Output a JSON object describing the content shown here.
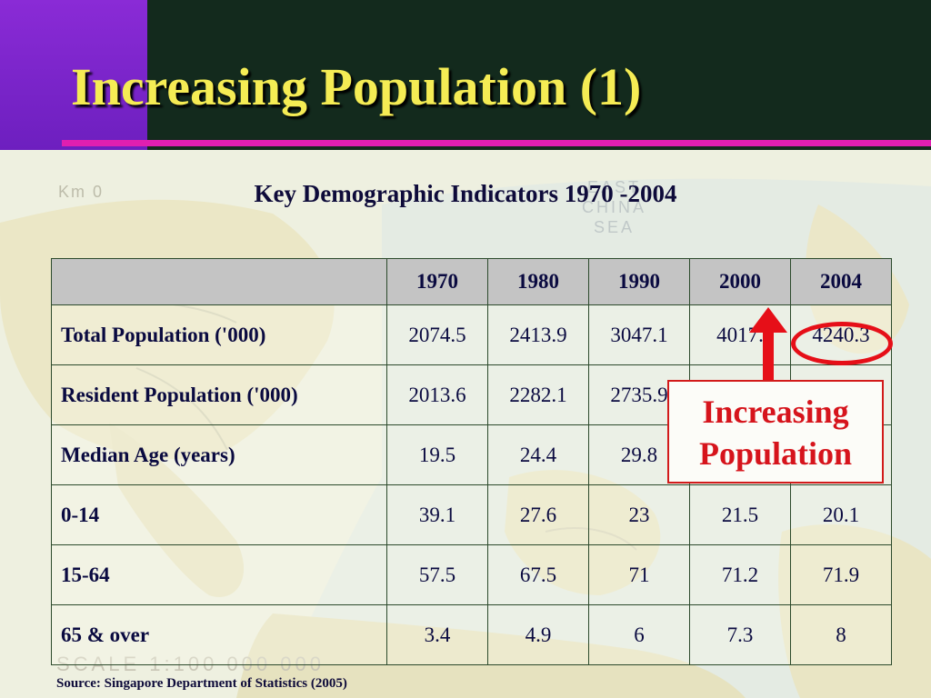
{
  "header": {
    "title": "Increasing Population (1)",
    "accent_color": "#e01fb0",
    "title_color": "#f5ec54"
  },
  "map": {
    "scale_label": "Km 0",
    "sea_label_line1": "EAST",
    "sea_label_line2": "CHINA",
    "sea_label_line3": "SEA",
    "scale_text": "SCALE 1:100 000 000"
  },
  "subtitle": "Key Demographic Indicators 1970 -2004",
  "table": {
    "columns": [
      "1970",
      "1980",
      "1990",
      "2000",
      "2004"
    ],
    "rows": [
      {
        "label": "Total Population ('000)",
        "values": [
          "2074.5",
          "2413.9",
          "3047.1",
          "4017.",
          "4240.3"
        ]
      },
      {
        "label": "Resident Population ('000)",
        "values": [
          "2013.6",
          "2282.1",
          "2735.9",
          "",
          ""
        ]
      },
      {
        "label": "Median Age (years)",
        "values": [
          "19.5",
          "24.4",
          "29.8",
          "",
          ""
        ]
      },
      {
        "label": "0-14",
        "values": [
          "39.1",
          "27.6",
          "23",
          "21.5",
          "20.1"
        ]
      },
      {
        "label": "15-64",
        "values": [
          "57.5",
          "67.5",
          "71",
          "71.2",
          "71.9"
        ]
      },
      {
        "label": "65 & over",
        "values": [
          "3.4",
          "4.9",
          "6",
          "7.3",
          "8"
        ]
      }
    ]
  },
  "callout": {
    "line1": "Increasing",
    "line2": "Population",
    "color": "#d6141c"
  },
  "source": "Source: Singapore Department of Statistics (2005)"
}
